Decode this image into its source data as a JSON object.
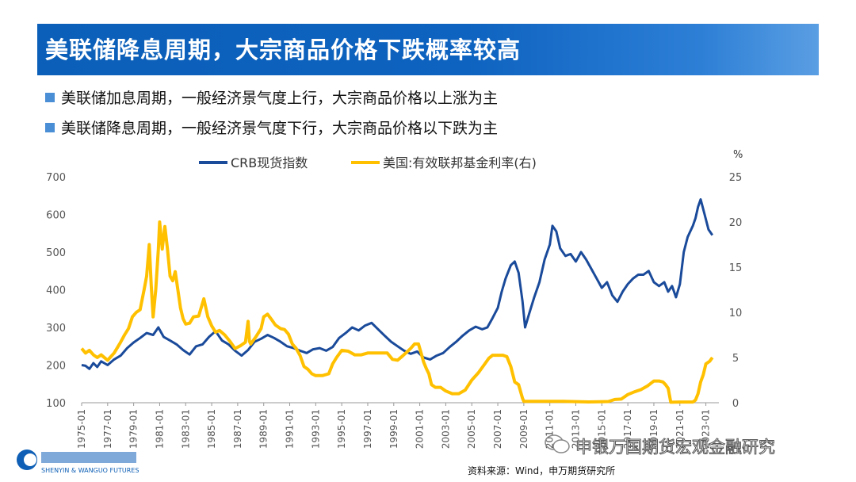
{
  "header": {
    "title": "美联储降息周期，大宗商品价格下跌概率较高"
  },
  "bullets": [
    "美联储加息周期，一般经济景气度上行，大宗商品价格以上涨为主",
    "美联储降息周期，一般经济景气度下行，大宗商品价格以下跌为主"
  ],
  "footer": {
    "source": "资料来源：Wind，申万期货研究所",
    "watermark": "申银万国期货宏观金融研究",
    "logo_text": "SHENYIN & WANGUO FUTURES"
  },
  "chart_data": {
    "type": "line",
    "right_unit": "%",
    "x_ticks": [
      "1975-01",
      "1977-01",
      "1979-01",
      "1981-01",
      "1983-01",
      "1985-01",
      "1987-01",
      "1989-01",
      "1991-01",
      "1993-01",
      "1995-01",
      "1997-01",
      "1999-01",
      "2001-01",
      "2003-01",
      "2005-01",
      "2007-01",
      "2009-01",
      "2011-01",
      "2013-01",
      "2015-01",
      "2017-01",
      "2019-01",
      "2021-01",
      "2023-01"
    ],
    "ylim_left": [
      100,
      700
    ],
    "ylim_right": [
      0,
      25
    ],
    "xlim": [
      1975.0,
      2024.0
    ],
    "left_ticks": [
      100,
      200,
      300,
      400,
      500,
      600,
      700
    ],
    "right_ticks": [
      0,
      5,
      10,
      15,
      20,
      25
    ],
    "grid": false,
    "legend_position": "top",
    "series": [
      {
        "name": "CRB现货指数",
        "axis": "left",
        "color": "#1a4a9a",
        "x": [
          1975.0,
          1975.3,
          1975.6,
          1975.9,
          1976.2,
          1976.5,
          1977.0,
          1977.5,
          1978.0,
          1978.5,
          1979.0,
          1979.5,
          1980.0,
          1980.5,
          1980.9,
          1981.3,
          1981.8,
          1982.3,
          1982.8,
          1983.3,
          1983.8,
          1984.3,
          1984.8,
          1985.3,
          1985.8,
          1986.3,
          1986.8,
          1987.3,
          1987.8,
          1988.3,
          1988.8,
          1989.3,
          1989.8,
          1990.3,
          1990.8,
          1991.3,
          1991.8,
          1992.3,
          1992.8,
          1993.3,
          1993.8,
          1994.3,
          1994.8,
          1995.3,
          1995.8,
          1996.3,
          1996.8,
          1997.3,
          1997.8,
          1998.3,
          1998.8,
          1999.3,
          1999.8,
          2000.3,
          2000.8,
          2001.3,
          2001.8,
          2002.3,
          2002.8,
          2003.3,
          2003.8,
          2004.3,
          2004.8,
          2005.3,
          2005.8,
          2006.2,
          2006.6,
          2007.0,
          2007.3,
          2007.6,
          2008.0,
          2008.3,
          2008.6,
          2008.9,
          2009.1,
          2009.4,
          2009.8,
          2010.2,
          2010.6,
          2011.0,
          2011.2,
          2011.5,
          2011.8,
          2012.2,
          2012.6,
          2013.0,
          2013.4,
          2013.8,
          2014.2,
          2014.6,
          2015.0,
          2015.4,
          2015.8,
          2016.2,
          2016.6,
          2017.0,
          2017.4,
          2017.8,
          2018.2,
          2018.6,
          2019.0,
          2019.4,
          2019.8,
          2020.1,
          2020.4,
          2020.7,
          2021.0,
          2021.3,
          2021.6,
          2022.0,
          2022.2,
          2022.4,
          2022.6,
          2022.9,
          2023.2,
          2023.5
        ],
        "values": [
          200,
          198,
          190,
          205,
          195,
          210,
          200,
          215,
          225,
          245,
          260,
          272,
          285,
          280,
          300,
          275,
          265,
          255,
          240,
          228,
          250,
          255,
          275,
          290,
          265,
          255,
          238,
          225,
          240,
          262,
          270,
          280,
          272,
          262,
          250,
          245,
          238,
          232,
          242,
          245,
          238,
          248,
          272,
          285,
          300,
          292,
          305,
          312,
          295,
          278,
          262,
          250,
          238,
          230,
          236,
          220,
          215,
          225,
          232,
          248,
          262,
          278,
          292,
          302,
          295,
          300,
          325,
          352,
          395,
          430,
          465,
          475,
          445,
          370,
          300,
          335,
          380,
          420,
          480,
          520,
          570,
          555,
          510,
          490,
          495,
          475,
          500,
          480,
          455,
          430,
          405,
          420,
          385,
          368,
          395,
          415,
          430,
          440,
          440,
          450,
          420,
          410,
          420,
          395,
          410,
          380,
          415,
          500,
          540,
          570,
          590,
          620,
          640,
          600,
          560,
          545
        ],
        "points": []
      },
      {
        "name": "美国:有效联邦基金利率(右)",
        "axis": "right",
        "color": "#ffc000",
        "x": [
          1975.0,
          1975.3,
          1975.6,
          1975.9,
          1976.2,
          1976.5,
          1977.0,
          1977.5,
          1978.0,
          1978.3,
          1978.6,
          1978.9,
          1979.2,
          1979.5,
          1979.8,
          1980.0,
          1980.2,
          1980.35,
          1980.5,
          1980.7,
          1980.9,
          1981.0,
          1981.2,
          1981.4,
          1981.6,
          1981.8,
          1982.0,
          1982.2,
          1982.4,
          1982.6,
          1982.8,
          1983.0,
          1983.3,
          1983.6,
          1984.0,
          1984.4,
          1984.7,
          1985.0,
          1985.3,
          1985.6,
          1986.0,
          1986.4,
          1986.8,
          1987.2,
          1987.6,
          1987.8,
          1987.9,
          1988.0,
          1988.4,
          1988.8,
          1989.0,
          1989.3,
          1989.6,
          1989.9,
          1990.3,
          1990.6,
          1990.9,
          1991.2,
          1991.5,
          1991.8,
          1992.1,
          1992.4,
          1992.7,
          1993.0,
          1993.5,
          1994.0,
          1994.3,
          1994.6,
          1995.0,
          1995.5,
          1996.0,
          1996.5,
          1997.0,
          1997.5,
          1998.0,
          1998.5,
          1998.9,
          1999.3,
          1999.7,
          2000.0,
          2000.3,
          2000.6,
          2000.9,
          2001.1,
          2001.3,
          2001.5,
          2001.7,
          2001.9,
          2002.2,
          2002.6,
          2003.0,
          2003.5,
          2004.0,
          2004.5,
          2005.0,
          2005.5,
          2006.0,
          2006.3,
          2006.6,
          2007.0,
          2007.4,
          2007.7,
          2008.0,
          2008.3,
          2008.6,
          2008.9,
          2009.0,
          2010.0,
          2012.0,
          2014.0,
          2015.5,
          2016.0,
          2016.5,
          2017.0,
          2017.5,
          2018.0,
          2018.5,
          2019.0,
          2019.4,
          2019.7,
          2019.9,
          2020.1,
          2020.3,
          2021.0,
          2022.0,
          2022.2,
          2022.4,
          2022.6,
          2022.8,
          2023.0,
          2023.3,
          2023.5
        ],
        "values": [
          6.0,
          5.5,
          5.8,
          5.3,
          5.0,
          5.3,
          4.7,
          5.5,
          6.7,
          7.5,
          8.2,
          9.5,
          10.0,
          10.3,
          12.5,
          14.0,
          17.5,
          13.0,
          9.5,
          12.5,
          17.0,
          20.0,
          17.0,
          19.5,
          17.0,
          14.0,
          13.5,
          14.5,
          12.5,
          10.5,
          9.3,
          8.7,
          8.8,
          9.5,
          9.6,
          11.5,
          9.5,
          8.5,
          7.8,
          8.0,
          7.5,
          6.8,
          6.0,
          6.3,
          6.7,
          9.0,
          6.8,
          6.5,
          7.3,
          8.2,
          9.5,
          9.8,
          9.2,
          8.6,
          8.2,
          8.1,
          7.6,
          6.5,
          6.0,
          5.2,
          4.0,
          3.7,
          3.2,
          3.0,
          3.0,
          3.2,
          4.3,
          5.0,
          5.8,
          5.7,
          5.3,
          5.3,
          5.5,
          5.5,
          5.5,
          5.5,
          4.8,
          4.7,
          5.2,
          5.6,
          6.0,
          6.5,
          6.5,
          5.5,
          4.5,
          3.8,
          3.2,
          2.0,
          1.7,
          1.7,
          1.3,
          1.0,
          1.0,
          1.4,
          2.5,
          3.3,
          4.3,
          4.9,
          5.25,
          5.25,
          5.25,
          5.1,
          4.0,
          2.3,
          2.0,
          0.5,
          0.15,
          0.15,
          0.15,
          0.09,
          0.13,
          0.36,
          0.4,
          0.9,
          1.2,
          1.45,
          1.85,
          2.4,
          2.4,
          2.3,
          2.0,
          1.6,
          0.05,
          0.08,
          0.08,
          0.3,
          1.0,
          2.3,
          3.1,
          4.3,
          4.6,
          5.0
        ],
        "points": []
      }
    ]
  }
}
